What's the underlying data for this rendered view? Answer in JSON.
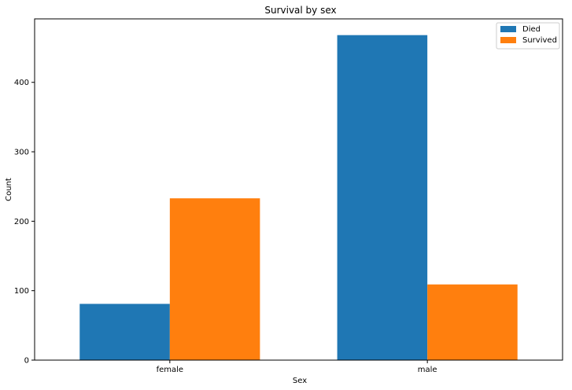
{
  "chart_data": {
    "type": "bar",
    "title": "Survival by sex",
    "xlabel": "Sex",
    "ylabel": "Count",
    "categories": [
      "female",
      "male"
    ],
    "series": [
      {
        "name": "Died",
        "color": "#1f77b4",
        "values": [
          81,
          468
        ]
      },
      {
        "name": "Survived",
        "color": "#ff7f0e",
        "values": [
          233,
          109
        ]
      }
    ],
    "ylim": [
      0,
      491.4
    ],
    "yticks": [
      0,
      100,
      200,
      300,
      400
    ],
    "grid": false,
    "legend_position": "top-right"
  }
}
